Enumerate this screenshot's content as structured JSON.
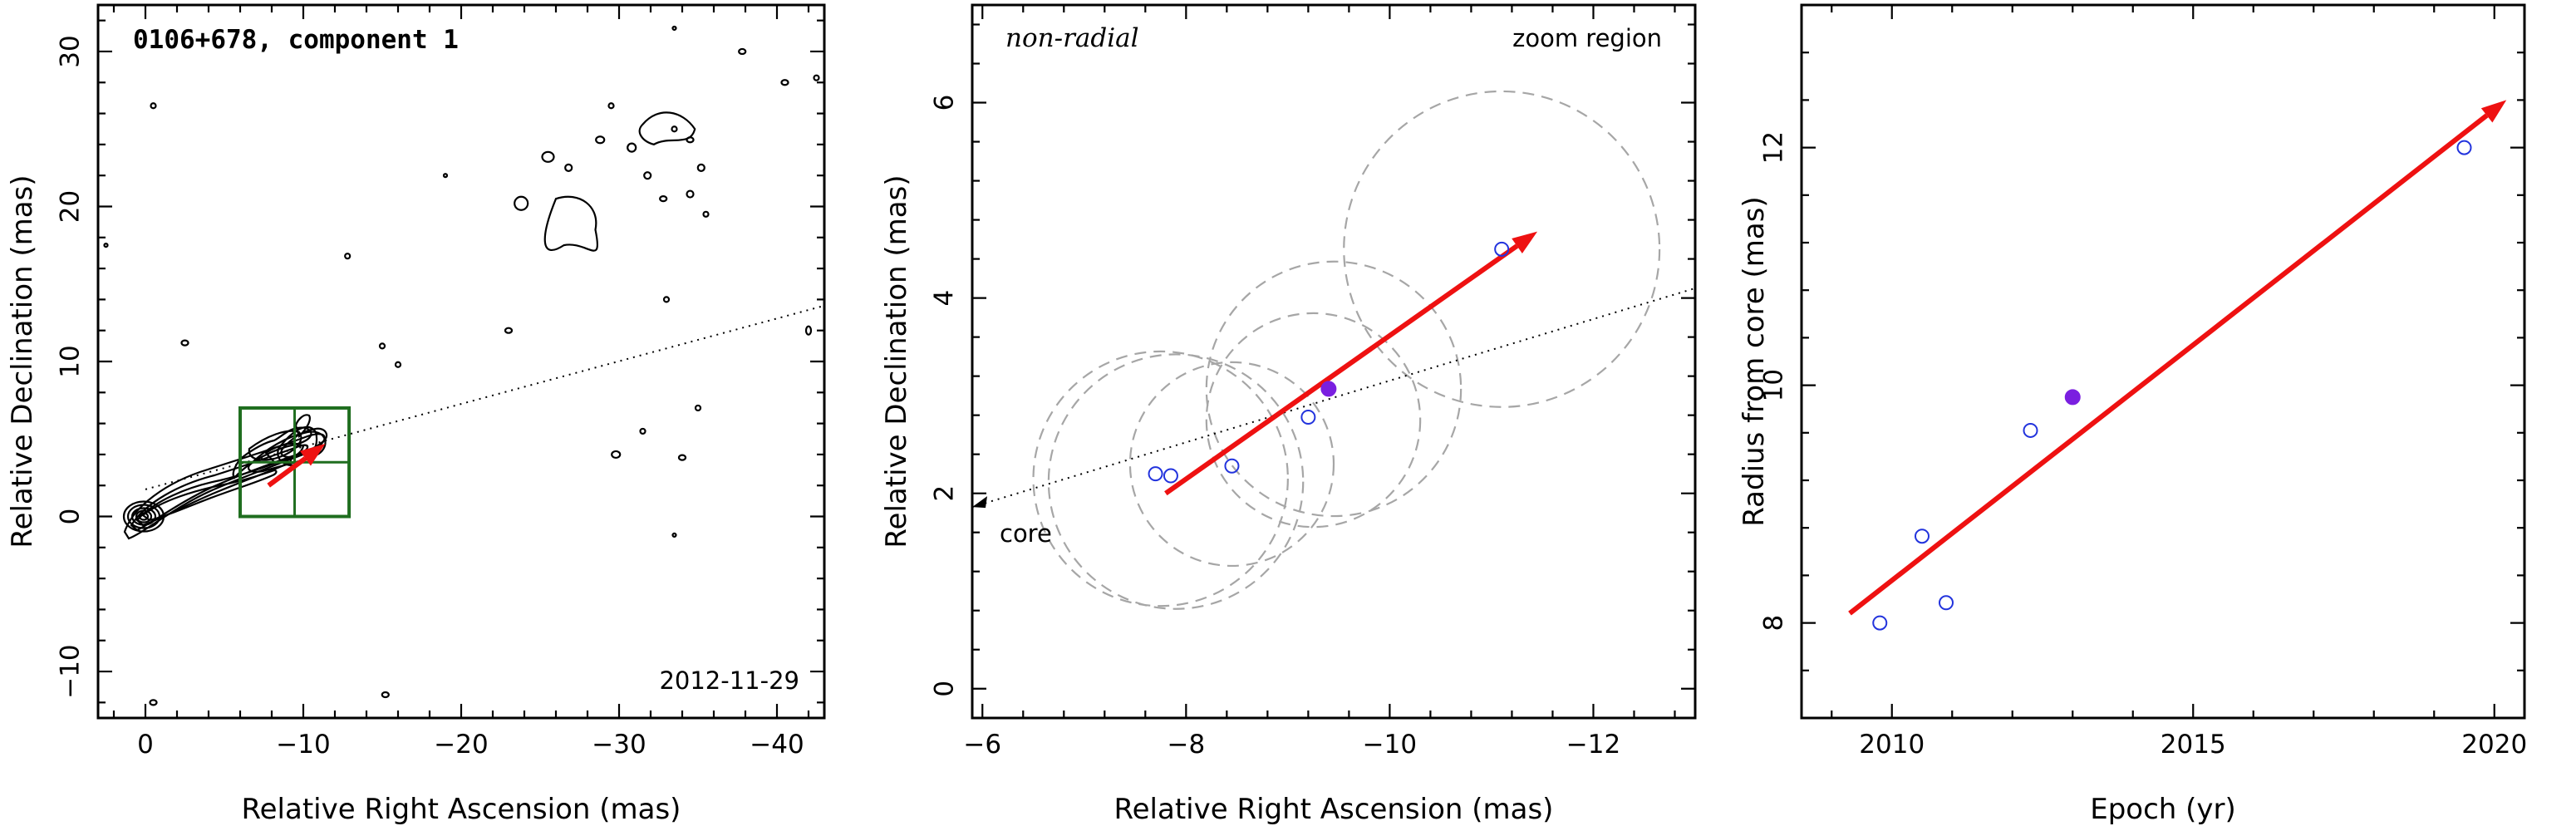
{
  "colors": {
    "arrow": "#ee1111",
    "open_marker": "#2233dd",
    "filled_marker": "#7a1fe0",
    "zoom_box": "#1f6e1f",
    "circle": "#a6a6a6"
  },
  "chart_data": [
    {
      "type": "contour",
      "title": "0106+678, component 1",
      "date_label": "2012-11-29",
      "xlabel": "Relative Right Ascension (mas)",
      "ylabel": "Relative Declination (mas)",
      "xlim": [
        3,
        -43
      ],
      "ylim": [
        -13,
        33
      ],
      "xticks": [
        0,
        -10,
        -20,
        -30,
        -40
      ],
      "xticklabels": [
        "0",
        "−10",
        "−20",
        "−30",
        "−40"
      ],
      "yticks": [
        -10,
        0,
        10,
        20,
        30
      ],
      "yticklabels": [
        "−10",
        "0",
        "10",
        "20",
        "30"
      ],
      "zoom_box": {
        "x": [
          -6,
          -12.9
        ],
        "y": [
          0,
          7
        ]
      },
      "trajectory_line": {
        "from": [
          0,
          1.75
        ],
        "to": [
          -43,
          13.6
        ]
      },
      "arrow": {
        "from": [
          -7.8,
          2.0
        ],
        "to": [
          -11.4,
          4.7
        ]
      }
    },
    {
      "type": "scatter",
      "title_left": "non-radial",
      "title_right": "zoom region",
      "core_label": "core",
      "xlabel": "Relative Right Ascension (mas)",
      "ylabel": "Relative Declination (mas)",
      "xlim": [
        -5.9,
        -13.0
      ],
      "ylim": [
        -0.3,
        7.0
      ],
      "xticks": [
        -6,
        -8,
        -10,
        -12
      ],
      "xticklabels": [
        "−6",
        "−8",
        "−10",
        "−12"
      ],
      "yticks": [
        0,
        2,
        4,
        6
      ],
      "yticklabels": [
        "0",
        "2",
        "4",
        "6"
      ],
      "points_open": [
        {
          "x": -7.7,
          "y": 2.2
        },
        {
          "x": -7.85,
          "y": 2.18
        },
        {
          "x": -8.45,
          "y": 2.28
        },
        {
          "x": -9.2,
          "y": 2.78
        },
        {
          "x": -11.1,
          "y": 4.5
        }
      ],
      "points_filled": [
        {
          "x": -9.4,
          "y": 3.07
        }
      ],
      "circles": [
        {
          "x": -7.75,
          "y": 2.15,
          "r": 1.25
        },
        {
          "x": -7.9,
          "y": 2.12,
          "r": 1.25
        },
        {
          "x": -8.45,
          "y": 2.3,
          "r": 1.0
        },
        {
          "x": -9.25,
          "y": 2.75,
          "r": 1.05
        },
        {
          "x": -9.45,
          "y": 3.07,
          "r": 1.25
        },
        {
          "x": -11.1,
          "y": 4.5,
          "r": 1.55
        }
      ],
      "trajectory_line": {
        "from": [
          -5.9,
          1.86
        ],
        "to": [
          -13.0,
          4.1
        ]
      },
      "arrow": {
        "from": [
          -7.8,
          2.0
        ],
        "to": [
          -11.45,
          4.68
        ]
      }
    },
    {
      "type": "scatter",
      "xlabel": "Epoch (yr)",
      "ylabel": "Radius from core (mas)",
      "xlim": [
        2008.5,
        2020.5
      ],
      "ylim": [
        7.2,
        13.2
      ],
      "xticks": [
        2010,
        2015,
        2020
      ],
      "xticklabels": [
        "2010",
        "2015",
        "2020"
      ],
      "yticks": [
        8,
        10,
        12
      ],
      "yticklabels": [
        "8",
        "10",
        "12"
      ],
      "points_open": [
        {
          "x": 2009.8,
          "y": 8.0
        },
        {
          "x": 2010.5,
          "y": 8.73
        },
        {
          "x": 2010.9,
          "y": 8.17
        },
        {
          "x": 2012.3,
          "y": 9.62
        },
        {
          "x": 2019.5,
          "y": 12.0
        }
      ],
      "points_filled": [
        {
          "x": 2013.0,
          "y": 9.9
        }
      ],
      "arrow": {
        "from": [
          2009.3,
          8.08
        ],
        "to": [
          2020.2,
          12.4
        ]
      }
    }
  ]
}
